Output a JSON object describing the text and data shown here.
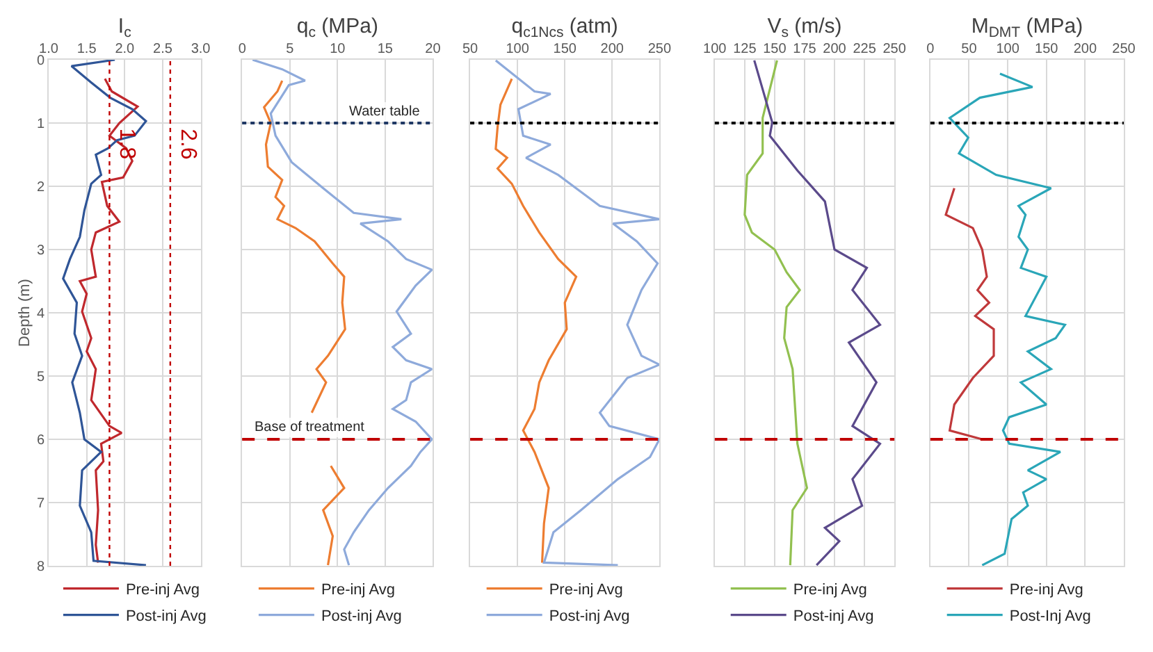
{
  "chart_data": [
    {
      "type": "line",
      "xlabel": "I$_{c}$",
      "ylabel": "Depth (m)",
      "xlim": [
        1.0,
        3.0
      ],
      "xticks": [
        {
          "value": 1,
          "label": "1.0"
        },
        1.5,
        {
          "value": 2,
          "label": "2.0"
        },
        2.5,
        {
          "value": 3,
          "label": "3.0"
        }
      ],
      "ylim": [
        8,
        0
      ],
      "yticks": [
        0,
        1,
        2,
        3,
        4,
        5,
        6,
        7,
        8
      ],
      "grid": true,
      "legend": "bottom",
      "series": [
        {
          "name": "Pre-inj Avg",
          "color": "#c0282d",
          "x": [
            1.74,
            1.83,
            2.17,
            1.93,
            1.8,
            2.02,
            2.1,
            1.98,
            1.7,
            1.77,
            1.93,
            1.62,
            1.56,
            1.62,
            1.41,
            1.5,
            1.44,
            1.56,
            1.5,
            1.62,
            1.56,
            1.8,
            1.96,
            1.69,
            1.72,
            1.62,
            1.65,
            1.62,
            1.65
          ],
          "values": [
            0.3,
            0.5,
            0.74,
            1.0,
            1.2,
            1.4,
            1.6,
            1.86,
            1.93,
            2.31,
            2.56,
            2.73,
            3.0,
            3.43,
            3.5,
            3.7,
            3.98,
            4.4,
            4.61,
            4.89,
            5.38,
            5.79,
            5.9,
            6.07,
            6.35,
            6.49,
            7.12,
            7.67,
            7.95
          ]
        },
        {
          "name": "Post-inj Avg",
          "color": "#2f5597",
          "x": [
            1.87,
            1.3,
            1.56,
            1.81,
            2.1,
            2.28,
            2.13,
            1.9,
            1.78,
            1.62,
            1.69,
            1.56,
            1.47,
            1.41,
            1.28,
            1.19,
            1.37,
            1.34,
            1.44,
            1.31,
            1.41,
            1.47,
            1.69,
            1.44,
            1.41,
            1.56,
            1.59,
            2.28
          ],
          "values": [
            0.0,
            0.1,
            0.36,
            0.6,
            0.78,
            0.97,
            1.2,
            1.27,
            1.4,
            1.5,
            1.82,
            1.96,
            2.38,
            2.8,
            3.15,
            3.46,
            3.84,
            4.33,
            4.68,
            5.1,
            5.58,
            6.0,
            6.2,
            6.49,
            7.05,
            7.47,
            7.92,
            7.99
          ]
        }
      ],
      "ref_lines": [
        {
          "axis": "x",
          "value": 1.8,
          "label": "1.8",
          "color": "#c00000",
          "line_style": "dotted"
        },
        {
          "axis": "x",
          "value": 2.6,
          "label": "2.6",
          "color": "#c00000",
          "line_style": "dotted"
        }
      ]
    },
    {
      "type": "line",
      "xlabel": "q$_{c}$ (MPa)",
      "xlim": [
        0,
        20
      ],
      "xticks": [
        0,
        5,
        10,
        15,
        20
      ],
      "ylim": [
        8,
        0
      ],
      "yticks": [
        0,
        1,
        2,
        3,
        4,
        5,
        6,
        7,
        8
      ],
      "tick_labels": "x",
      "grid": true,
      "legend": "bottom",
      "series": [
        {
          "name": "Pre-inj Avg",
          "color": "#ed7d31",
          "x": [
            4.2,
            3.7,
            2.3,
            3.0,
            2.5,
            2.7,
            4.2,
            3.5,
            4.4,
            3.7,
            5.6,
            7.6,
            9.5,
            10.7,
            10.5,
            10.8,
            9.0,
            7.8,
            8.8,
            7.3,
            null,
            9.3,
            10.7,
            8.5,
            9.5,
            9.0
          ],
          "values": [
            0.33,
            0.5,
            0.75,
            1.0,
            1.34,
            1.69,
            1.9,
            2.17,
            2.31,
            2.52,
            2.66,
            2.87,
            3.22,
            3.43,
            3.84,
            4.26,
            4.68,
            4.89,
            5.1,
            5.58,
            null,
            6.42,
            6.77,
            7.12,
            7.53,
            7.99
          ]
        },
        {
          "name": "Post-inj Avg",
          "color": "#8eaadb",
          "x": [
            1.1,
            4.2,
            6.6,
            4.9,
            3.0,
            3.5,
            5.2,
            8.5,
            11.7,
            16.7,
            12.4,
            15.3,
            17.2,
            19.9,
            18.2,
            16.2,
            17.7,
            15.8,
            17.2,
            19.9,
            17.7,
            17.2,
            15.8,
            18.2,
            19.9,
            18.7,
            17.7,
            15.3,
            13.3,
            11.7,
            10.7,
            11.2
          ],
          "values": [
            0.0,
            0.15,
            0.33,
            0.4,
            0.85,
            1.2,
            1.62,
            2.03,
            2.42,
            2.52,
            2.59,
            2.87,
            3.15,
            3.32,
            3.57,
            3.98,
            4.33,
            4.54,
            4.75,
            4.89,
            5.1,
            5.38,
            5.52,
            5.72,
            6.0,
            6.2,
            6.42,
            6.77,
            7.12,
            7.47,
            7.74,
            7.99
          ]
        }
      ],
      "ref_lines": [
        {
          "axis": "y",
          "value": 1,
          "label": "Water table",
          "color": "#1f3864",
          "line_style": "dotted"
        },
        {
          "axis": "y",
          "value": 6,
          "label": "Base of treatment",
          "color": "#c00000",
          "line_style": "dashed"
        }
      ]
    },
    {
      "type": "line",
      "xlabel": "q$_{c1Ncs}$ (atm)",
      "xlim": [
        50,
        250
      ],
      "xticks": [
        50,
        100,
        150,
        200,
        250
      ],
      "ylim": [
        8,
        0
      ],
      "yticks": [
        0,
        1,
        2,
        3,
        4,
        5,
        6,
        7,
        8
      ],
      "tick_labels": "x",
      "grid": true,
      "legend": "bottom",
      "series": [
        {
          "name": "Pre-inj Avg",
          "color": "#ed7d31",
          "x": [
            94,
            82,
            79,
            77,
            89,
            79,
            94,
            106,
            123,
            143,
            162,
            150,
            152,
            133,
            123,
            118,
            106,
            118,
            133,
            128,
            126
          ],
          "values": [
            0.3,
            0.71,
            1.06,
            1.41,
            1.55,
            1.72,
            1.96,
            2.31,
            2.73,
            3.15,
            3.43,
            3.84,
            4.26,
            4.75,
            5.1,
            5.52,
            5.86,
            6.2,
            6.77,
            7.33,
            7.95
          ]
        },
        {
          "name": "Post-inj Avg",
          "color": "#8eaadb",
          "x": [
            77,
            118,
            135,
            101,
            106,
            135,
            109,
            143,
            187,
            250,
            201,
            226,
            248,
            231,
            216,
            231,
            250,
            216,
            187,
            197,
            250,
            240,
            206,
            167,
            138,
            128,
            206
          ],
          "values": [
            0.01,
            0.5,
            0.54,
            0.78,
            1.2,
            1.34,
            1.55,
            1.82,
            2.31,
            2.52,
            2.59,
            2.87,
            3.22,
            3.64,
            4.19,
            4.68,
            4.82,
            5.03,
            5.58,
            5.79,
            6.0,
            6.28,
            6.63,
            7.12,
            7.47,
            7.95,
            7.99
          ]
        }
      ],
      "ref_lines": [
        {
          "axis": "y",
          "value": 1,
          "color": "#000000",
          "line_style": "dotted"
        },
        {
          "axis": "y",
          "value": 6,
          "color": "#c00000",
          "line_style": "dashed"
        }
      ]
    },
    {
      "type": "line",
      "xlabel": "V$_{s}$ (m/s)",
      "xlim": [
        100,
        250
      ],
      "xticks": [
        100,
        125,
        150,
        175,
        200,
        225,
        250
      ],
      "ylim": [
        8,
        0
      ],
      "yticks": [
        0,
        1,
        2,
        3,
        4,
        5,
        6,
        7,
        8
      ],
      "tick_labels": "x",
      "grid": true,
      "legend": "bottom",
      "series": [
        {
          "name": "Pre-inj Avg",
          "color": "#92c050",
          "x": [
            152,
            140,
            140,
            127,
            125,
            131,
            150,
            160,
            171,
            160,
            158,
            165,
            169,
            177,
            165,
            163
          ],
          "values": [
            0.01,
            0.92,
            1.48,
            1.82,
            2.45,
            2.73,
            3.0,
            3.36,
            3.64,
            3.91,
            4.4,
            4.89,
            6.07,
            6.77,
            7.12,
            7.99
          ]
        },
        {
          "name": "Post-inj Avg",
          "color": "#5b4a8b",
          "x": [
            133,
            148,
            146,
            169,
            192,
            200,
            227,
            215,
            238,
            212,
            235,
            215,
            238,
            215,
            223,
            192,
            204,
            185
          ],
          "values": [
            0.01,
            0.99,
            1.2,
            1.75,
            2.24,
            3.0,
            3.29,
            3.64,
            4.19,
            4.47,
            5.1,
            5.79,
            6.07,
            6.63,
            7.05,
            7.4,
            7.61,
            7.99
          ]
        }
      ],
      "ref_lines": [
        {
          "axis": "y",
          "value": 1,
          "color": "#000000",
          "line_style": "dotted"
        },
        {
          "axis": "y",
          "value": 6,
          "color": "#c00000",
          "line_style": "dashed"
        }
      ]
    },
    {
      "type": "line",
      "xlabel": "M$_{DMT}$ (MPa)",
      "xlim": [
        0,
        250
      ],
      "xticks": [
        0,
        50,
        100,
        150,
        200,
        250
      ],
      "ylim": [
        8,
        0
      ],
      "yticks": [
        0,
        1,
        2,
        3,
        4,
        5,
        6,
        7,
        8
      ],
      "tick_labels": "x",
      "grid": true,
      "legend": "bottom",
      "series": [
        {
          "name": "Pre-inj Avg",
          "color": "#c0393b",
          "x": [
            31,
            20,
            55,
            67,
            73,
            61,
            76,
            58,
            82,
            82,
            55,
            31,
            25,
            67
          ],
          "values": [
            2.03,
            2.45,
            2.66,
            3.0,
            3.43,
            3.64,
            3.84,
            4.05,
            4.26,
            4.68,
            5.03,
            5.45,
            5.86,
            6.0
          ]
        },
        {
          "name": "Post-Inj Avg",
          "color": "#2aa6b8",
          "x": [
            90,
            132,
            64,
            25,
            49,
            37,
            85,
            156,
            114,
            123,
            114,
            126,
            117,
            150,
            123,
            174,
            162,
            126,
            156,
            117,
            150,
            102,
            94,
            102,
            168,
            126,
            150,
            120,
            126,
            105,
            96,
            67
          ],
          "values": [
            0.22,
            0.43,
            0.6,
            0.92,
            1.23,
            1.48,
            1.82,
            2.03,
            2.31,
            2.45,
            2.8,
            3.0,
            3.29,
            3.43,
            4.05,
            4.19,
            4.4,
            4.61,
            4.89,
            5.1,
            5.45,
            5.65,
            5.86,
            6.07,
            6.2,
            6.49,
            6.63,
            6.84,
            7.05,
            7.26,
            7.81,
            7.99
          ]
        }
      ],
      "ref_lines": [
        {
          "axis": "y",
          "value": 1,
          "color": "#000000",
          "line_style": "dotted"
        },
        {
          "axis": "y",
          "value": 6,
          "color": "#c00000",
          "line_style": "dashed"
        }
      ]
    }
  ]
}
